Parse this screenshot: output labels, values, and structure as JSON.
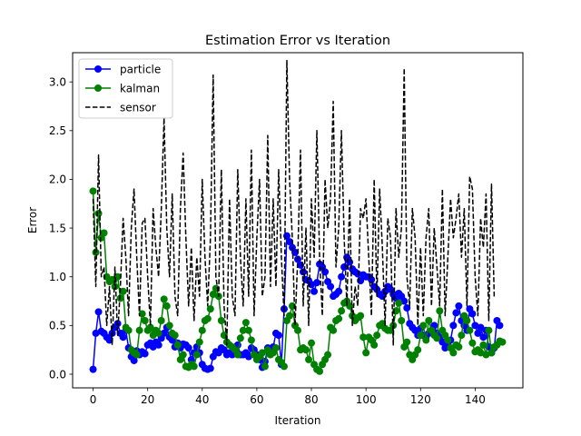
{
  "chart_data": {
    "type": "line",
    "title": "Estimation Error vs Iteration",
    "xlabel": "Iteration",
    "ylabel": "Error",
    "xlim": [
      -7.5,
      157.5
    ],
    "ylim": [
      -0.14,
      3.3
    ],
    "xticks": [
      0,
      20,
      40,
      60,
      80,
      100,
      120,
      140
    ],
    "yticks": [
      0.0,
      0.5,
      1.0,
      1.5,
      2.0,
      2.5,
      3.0
    ],
    "xtick_labels": [
      "0",
      "20",
      "40",
      "60",
      "80",
      "100",
      "120",
      "140"
    ],
    "ytick_labels": [
      "0.0",
      "0.5",
      "1.0",
      "1.5",
      "2.0",
      "2.5",
      "3.0"
    ],
    "grid": false,
    "legend_position": "top-left",
    "series": [
      {
        "name": "particle",
        "color": "#0000ff",
        "style": "solid",
        "marker": "circle",
        "values": [
          0.05,
          0.42,
          0.64,
          0.44,
          0.42,
          0.38,
          0.35,
          0.42,
          0.48,
          0.52,
          0.42,
          0.38,
          0.45,
          0.27,
          0.18,
          0.14,
          0.24,
          0.2,
          0.23,
          0.21,
          0.3,
          0.32,
          0.28,
          0.33,
          0.3,
          0.37,
          0.42,
          0.48,
          0.38,
          0.35,
          0.28,
          0.32,
          0.27,
          0.31,
          0.3,
          0.27,
          0.15,
          0.22,
          0.28,
          0.22,
          0.1,
          0.06,
          0.05,
          0.06,
          0.18,
          0.23,
          0.22,
          0.27,
          0.25,
          0.2,
          0.22,
          0.2,
          0.27,
          0.3,
          0.2,
          0.2,
          0.22,
          0.18,
          0.27,
          0.25,
          0.2,
          0.15,
          0.07,
          0.13,
          0.27,
          0.25,
          0.28,
          0.42,
          0.4,
          0.1,
          0.67,
          1.42,
          1.36,
          1.3,
          1.25,
          1.18,
          1.12,
          1.05,
          0.97,
          0.96,
          0.92,
          0.85,
          0.94,
          1.13,
          1.1,
          1.05,
          0.95,
          0.9,
          0.8,
          0.82,
          0.85,
          1.0,
          1.1,
          1.2,
          1.15,
          1.08,
          1.05,
          1.03,
          0.96,
          1.02,
          1.0,
          1.0,
          0.97,
          0.9,
          0.87,
          0.82,
          0.8,
          0.85,
          0.9,
          0.87,
          0.82,
          0.78,
          0.83,
          0.8,
          0.75,
          0.68,
          0.52,
          0.48,
          0.45,
          0.4,
          0.47,
          0.4,
          0.38,
          0.42,
          0.45,
          0.5,
          0.42,
          0.38,
          0.33,
          0.27,
          0.3,
          0.35,
          0.5,
          0.63,
          0.7,
          0.55,
          0.5,
          0.45,
          0.67,
          0.62,
          0.5,
          0.42,
          0.48,
          0.38,
          0.45,
          0.28,
          0.22,
          0.27,
          0.55,
          0.5
        ]
      },
      {
        "name": "kalman",
        "color": "#008000",
        "style": "solid",
        "marker": "circle",
        "values": [
          1.88,
          1.25,
          1.65,
          1.4,
          1.45,
          1.0,
          0.95,
          0.97,
          0.9,
          1.0,
          0.78,
          0.85,
          0.48,
          0.45,
          0.25,
          0.22,
          0.2,
          0.45,
          0.62,
          0.55,
          0.45,
          0.48,
          0.4,
          0.45,
          0.42,
          0.55,
          0.77,
          0.7,
          0.5,
          0.42,
          0.4,
          0.3,
          0.15,
          0.2,
          0.08,
          0.07,
          0.1,
          0.08,
          0.2,
          0.33,
          0.45,
          0.55,
          0.57,
          0.67,
          0.82,
          0.88,
          0.8,
          0.55,
          0.4,
          0.33,
          0.3,
          0.28,
          0.25,
          0.2,
          0.37,
          0.45,
          0.53,
          0.45,
          0.35,
          0.2,
          0.15,
          0.18,
          0.22,
          0.08,
          0.25,
          0.2,
          0.22,
          0.27,
          0.15,
          0.12,
          0.08,
          0.55,
          0.6,
          0.7,
          0.5,
          0.45,
          0.25,
          0.27,
          0.25,
          0.15,
          0.32,
          0.1,
          0.05,
          0.03,
          0.1,
          0.15,
          0.2,
          0.48,
          0.45,
          0.55,
          0.57,
          0.65,
          0.73,
          0.75,
          0.7,
          0.6,
          0.55,
          0.58,
          0.6,
          0.38,
          0.22,
          0.38,
          0.35,
          0.3,
          0.4,
          0.5,
          0.52,
          0.47,
          0.45,
          0.45,
          0.5,
          0.65,
          0.73,
          0.55,
          0.28,
          0.33,
          0.2,
          0.15,
          0.2,
          0.25,
          0.4,
          0.5,
          0.35,
          0.55,
          0.45,
          0.4,
          0.37,
          0.65,
          0.45,
          0.4,
          0.35,
          0.27,
          0.22,
          0.3,
          0.28,
          0.4,
          0.6,
          0.55,
          0.45,
          0.32,
          0.23,
          0.25,
          0.22,
          0.3,
          0.2,
          0.45,
          0.22,
          0.28,
          0.3,
          0.34,
          0.33
        ]
      },
      {
        "name": "sensor",
        "color": "#000000",
        "style": "dashed",
        "marker": "none",
        "values": [
          1.8,
          0.9,
          2.25,
          1.0,
          1.1,
          0.5,
          0.9,
          0.3,
          1.1,
          0.4,
          0.9,
          1.6,
          1.2,
          0.6,
          1.5,
          1.9,
          1.2,
          0.6,
          1.55,
          1.6,
          1.0,
          0.5,
          1.7,
          1.3,
          1.0,
          1.7,
          2.63,
          1.5,
          1.0,
          1.85,
          0.8,
          0.6,
          1.7,
          2.27,
          1.4,
          0.7,
          1.3,
          0.55,
          1.2,
          0.8,
          2.0,
          1.2,
          0.7,
          1.4,
          3.07,
          1.0,
          0.8,
          2.1,
          0.7,
          0.3,
          1.8,
          0.8,
          0.6,
          2.1,
          1.2,
          0.7,
          1.8,
          0.8,
          2.3,
          0.6,
          1.4,
          2.0,
          0.8,
          1.0,
          2.45,
          0.9,
          1.8,
          0.9,
          2.1,
          1.2,
          0.6,
          3.22,
          2.0,
          1.4,
          0.5,
          1.2,
          2.3,
          0.7,
          1.5,
          0.5,
          1.8,
          1.2,
          2.5,
          1.2,
          0.6,
          2.0,
          1.5,
          1.8,
          2.8,
          1.1,
          1.5,
          2.5,
          1.4,
          0.7,
          1.8,
          0.5,
          0.9,
          0.7,
          1.7,
          1.6,
          1.8,
          1.2,
          0.6,
          2.0,
          0.8,
          1.9,
          1.3,
          0.5,
          1.6,
          1.4,
          0.3,
          1.7,
          1.2,
          1.5,
          3.14,
          1.0,
          0.7,
          1.7,
          1.4,
          0.5,
          1.3,
          0.6,
          1.4,
          1.7,
          0.7,
          1.5,
          1.1,
          0.7,
          1.9,
          0.6,
          1.2,
          1.8,
          1.4,
          1.6,
          1.85,
          1.2,
          1.7,
          0.7,
          2.03,
          1.9,
          1.0,
          0.6,
          1.6,
          1.3,
          1.85,
          0.55,
          1.95,
          0.78
        ]
      }
    ]
  }
}
